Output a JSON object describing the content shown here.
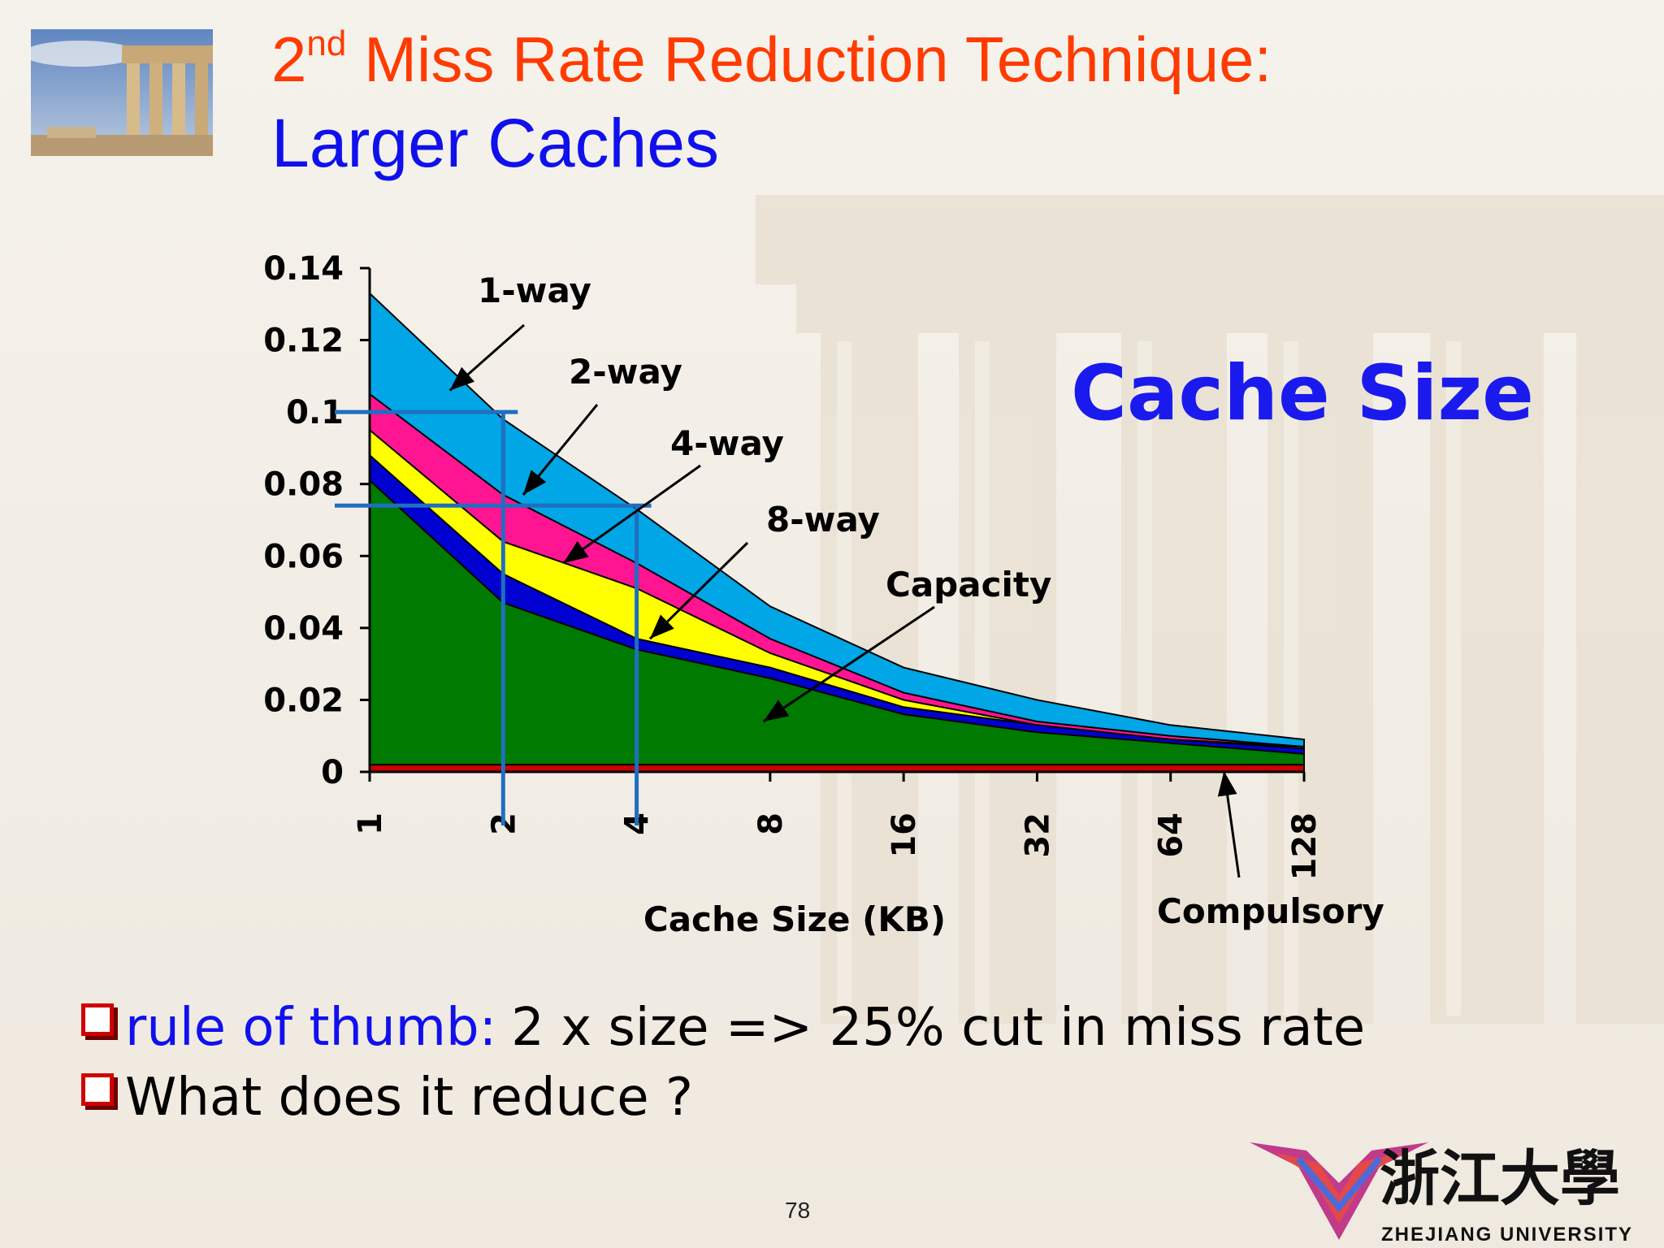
{
  "slide": {
    "title_line1_prefix": "2",
    "title_line1_sup": "nd",
    "title_line1_rest": " Miss Rate Reduction Technique:",
    "title_line2": "Larger Caches",
    "callout": "Cache  Size",
    "page_number": "78",
    "logo_text": "ZHEJIANG UNIVERSITY",
    "logo_chinese": "浙江大學"
  },
  "bullets": [
    {
      "label": "rule of thumb:",
      "text": "2 x size => 25% cut in miss rate"
    },
    {
      "label": "",
      "text": "What does it reduce ?"
    }
  ],
  "colors": {
    "title_orange": "#ff3b00",
    "title_blue": "#1010ee",
    "one_way": "#00a6e6",
    "two_way": "#ff1491",
    "four_way": "#ffff00",
    "eight_way": "#0000d0",
    "capacity": "#007a00",
    "compulsory": "#cc0000",
    "guide_lines": "#1f6fc0"
  },
  "chart_data": {
    "type": "area",
    "xlabel": "Cache Size (KB)",
    "ylabel": "",
    "x": [
      "1",
      "2",
      "4",
      "8",
      "16",
      "32",
      "64",
      "128"
    ],
    "ylim": [
      0,
      0.14
    ],
    "yticks": [
      "0",
      "0.02",
      "0.04",
      "0.06",
      "0.08",
      "0.1",
      "0.12",
      "0.14"
    ],
    "series": [
      {
        "name": "1-way",
        "values": [
          0.133,
          0.098,
          0.073,
          0.046,
          0.029,
          0.02,
          0.013,
          0.009
        ]
      },
      {
        "name": "2-way",
        "values": [
          0.105,
          0.077,
          0.058,
          0.037,
          0.022,
          0.014,
          0.01,
          0.007
        ]
      },
      {
        "name": "4-way",
        "values": [
          0.095,
          0.064,
          0.051,
          0.033,
          0.02,
          0.013,
          0.009,
          0.007
        ]
      },
      {
        "name": "8-way",
        "values": [
          0.088,
          0.055,
          0.037,
          0.029,
          0.018,
          0.013,
          0.009,
          0.0065
        ]
      },
      {
        "name": "Capacity",
        "values": [
          0.081,
          0.047,
          0.034,
          0.026,
          0.016,
          0.011,
          0.008,
          0.005
        ]
      },
      {
        "name": "Compulsory",
        "values": [
          0.002,
          0.002,
          0.002,
          0.002,
          0.002,
          0.002,
          0.002,
          0.002
        ]
      }
    ],
    "guides": [
      {
        "x": "2",
        "y": 0.1
      },
      {
        "x": "4",
        "y": 0.074
      }
    ],
    "annotations": [
      "1-way",
      "2-way",
      "4-way",
      "8-way",
      "Capacity",
      "Compulsory"
    ],
    "grid": false,
    "legend": "none"
  }
}
